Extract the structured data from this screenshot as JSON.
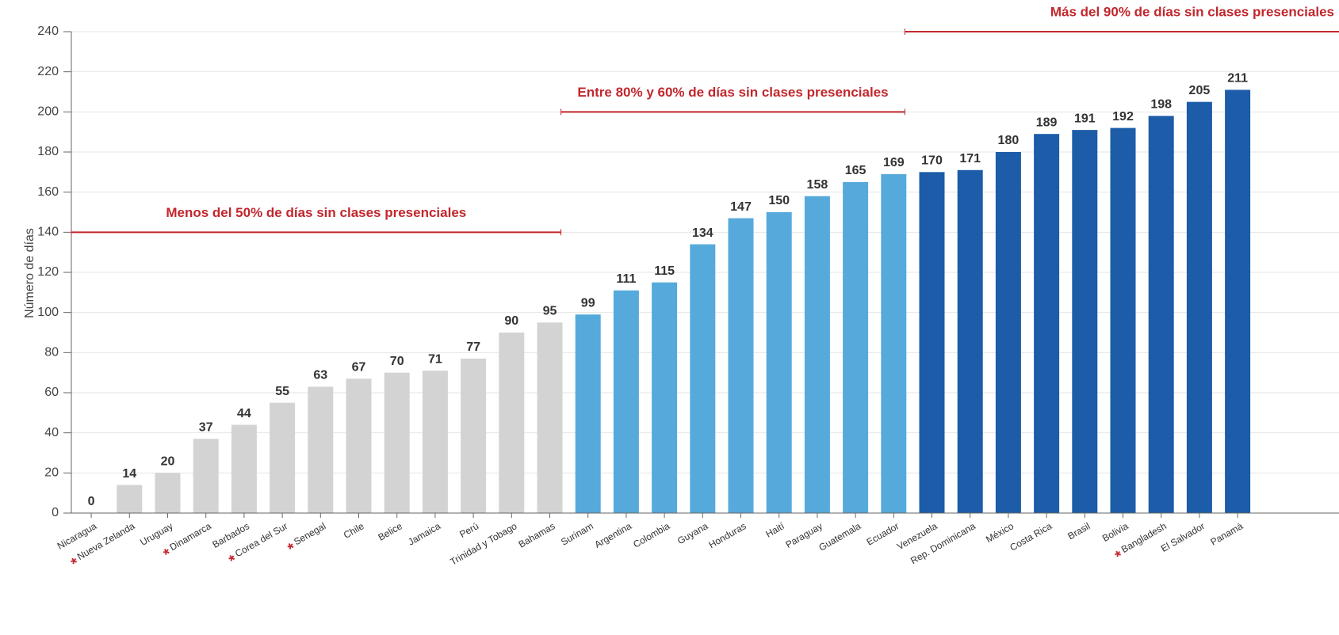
{
  "chart_data": {
    "type": "bar",
    "y_label": "Número de días",
    "categories": [
      "Nicaragua",
      "Nueva Zelanda",
      "Uruguay",
      "Dinamarca",
      "Barbados",
      "Corea del Sur",
      "Senegal",
      "Chile",
      "Belice",
      "Jamaica",
      "Perú",
      "Trinidad y Tobago",
      "Bahamas",
      "Surinam",
      "Argentina",
      "Colombia",
      "Guyana",
      "Honduras",
      "Haití",
      "Paraguay",
      "Guatemala",
      "Ecuador",
      "Venezuela",
      "Rep. Dominicana",
      "México",
      "Costa Rica",
      "Brasil",
      "Bolivia",
      "Bangladesh",
      "El Salvador",
      "Panamá"
    ],
    "values": [
      0,
      14,
      20,
      37,
      44,
      55,
      63,
      67,
      70,
      71,
      77,
      90,
      95,
      99,
      111,
      115,
      134,
      147,
      150,
      158,
      165,
      169,
      170,
      171,
      180,
      189,
      191,
      192,
      198,
      205,
      211
    ],
    "colors": [
      "#d3d3d3",
      "#d3d3d3",
      "#d3d3d3",
      "#d3d3d3",
      "#d3d3d3",
      "#d3d3d3",
      "#d3d3d3",
      "#d3d3d3",
      "#d3d3d3",
      "#d3d3d3",
      "#d3d3d3",
      "#d3d3d3",
      "#d3d3d3",
      "#56aadb",
      "#56aadb",
      "#56aadb",
      "#56aadb",
      "#56aadb",
      "#56aadb",
      "#56aadb",
      "#56aadb",
      "#56aadb",
      "#1c5ca8",
      "#1c5ca8",
      "#1c5ca8",
      "#1c5ca8",
      "#1c5ca8",
      "#1c5ca8",
      "#1c5ca8",
      "#1c5ca8",
      "#1c5ca8"
    ],
    "marker": "*",
    "starred": [
      false,
      true,
      false,
      true,
      false,
      true,
      true,
      false,
      false,
      false,
      false,
      false,
      false,
      false,
      false,
      false,
      false,
      false,
      false,
      false,
      false,
      false,
      false,
      false,
      false,
      false,
      false,
      false,
      true,
      false,
      false
    ],
    "annotations": [
      {
        "text": "Menos del 50% de días sin clases presenciales",
        "y": 140
      },
      {
        "text": "Entre 80% y 60% de días sin clases presenciales",
        "y": 200
      },
      {
        "text": "Más del 90% de días sin clases presenciales",
        "y": 240
      }
    ],
    "annotation_color": "#c1272d",
    "ylim": [
      0,
      240
    ],
    "yticks": [
      0,
      20,
      40,
      60,
      80,
      100,
      120,
      140,
      160,
      180,
      200,
      220,
      240
    ],
    "grid": true
  }
}
